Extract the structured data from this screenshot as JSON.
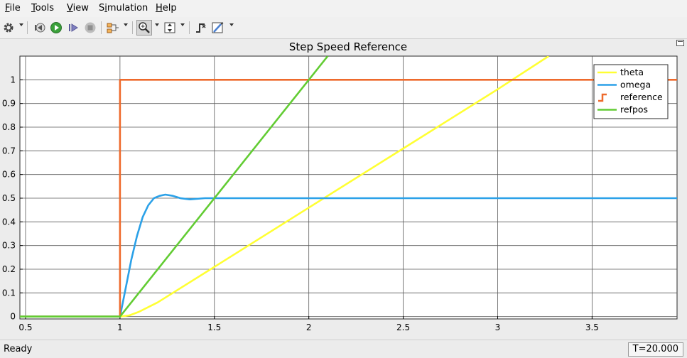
{
  "menu": [
    {
      "key": "F",
      "rest": "ile"
    },
    {
      "key": "T",
      "rest": "ools"
    },
    {
      "key": "V",
      "rest": "iew"
    },
    {
      "pre": "S",
      "key": "i",
      "rest": "mulation"
    },
    {
      "key": "H",
      "rest": "elp"
    }
  ],
  "toolbar_icons": [
    "gear-icon",
    "step-back-icon",
    "run-icon",
    "step-forward-icon",
    "stop-icon",
    "signal-select-icon",
    "zoom-icon",
    "scale-axes-icon",
    "trigger-icon",
    "cursor-measure-icon"
  ],
  "status": {
    "text": "Ready",
    "time": "T=20.000"
  },
  "chart_data": {
    "type": "line",
    "title": "Step Speed Reference",
    "xlabel": "",
    "ylabel": "",
    "xlim": [
      0.47,
      3.95
    ],
    "ylim": [
      -0.01,
      1.1
    ],
    "xticks": [
      "0.5",
      "1",
      "1.5",
      "2",
      "2.5",
      "3",
      "3.5"
    ],
    "xtick_values": [
      0.5,
      1,
      1.5,
      2,
      2.5,
      3,
      3.5
    ],
    "yticks": [
      "0",
      "0.1",
      "0.2",
      "0.3",
      "0.4",
      "0.5",
      "0.6",
      "0.7",
      "0.8",
      "0.9",
      "1"
    ],
    "ytick_values": [
      0,
      0.1,
      0.2,
      0.3,
      0.4,
      0.5,
      0.6,
      0.7,
      0.8,
      0.9,
      1
    ],
    "grid": true,
    "legend_position": "top-right",
    "series": [
      {
        "name": "theta",
        "color": "#ffff33",
        "x": [
          0.47,
          1.0,
          1.05,
          1.1,
          1.2,
          1.5,
          2.0,
          2.5,
          3.0,
          3.27
        ],
        "y": [
          0,
          0,
          0.005,
          0.02,
          0.06,
          0.21,
          0.46,
          0.71,
          0.96,
          1.1
        ]
      },
      {
        "name": "omega",
        "color": "#2ba1e8",
        "x": [
          0.47,
          1.0,
          1.03,
          1.06,
          1.09,
          1.12,
          1.15,
          1.18,
          1.21,
          1.24,
          1.28,
          1.32,
          1.37,
          1.45,
          1.6,
          2.0,
          2.5,
          3.0,
          3.5,
          3.95
        ],
        "y": [
          0,
          0,
          0.12,
          0.24,
          0.34,
          0.42,
          0.47,
          0.5,
          0.51,
          0.515,
          0.51,
          0.5,
          0.495,
          0.5,
          0.5,
          0.5,
          0.5,
          0.5,
          0.5,
          0.5
        ]
      },
      {
        "name": "reference",
        "color": "#ee6a2c",
        "x": [
          0.47,
          1.0,
          1.0,
          3.95
        ],
        "y": [
          0,
          0,
          1,
          1
        ]
      },
      {
        "name": "refpos",
        "color": "#62cc33",
        "x": [
          0.47,
          1.0,
          2.1
        ],
        "y": [
          0,
          0,
          1.1
        ]
      }
    ]
  }
}
